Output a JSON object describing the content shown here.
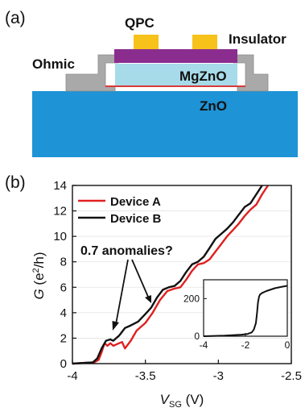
{
  "panel_a": {
    "panel_label": "(a)",
    "labels": {
      "qpc": "QPC",
      "insulator": "Insulator",
      "ohmic": "Ohmic",
      "mgzno": "MgZnO",
      "zno": "ZnO"
    },
    "colors": {
      "qpc_gate": "#f7c21a",
      "insulator": "#8a2d8e",
      "ohmic": "#a9a9a9",
      "mgzno": "#a7dbe9",
      "interface": "#d93a3a",
      "zno": "#1e93d6"
    }
  },
  "panel_b": {
    "panel_label": "(b)",
    "annotation": "0.7 anomalies?"
  },
  "chart_data": [
    {
      "type": "line",
      "xlabel": "V",
      "xlabel_sub": "SG",
      "xlabel_unit": "(V)",
      "ylabel": "G",
      "ylabel_unit": "(e",
      "ylabel_sup": "2",
      "ylabel_unit_end": "/h)",
      "xlim": [
        -4,
        -2.5
      ],
      "ylim": [
        0,
        14
      ],
      "xticks": [
        -4,
        -3.5,
        -3,
        -2.5
      ],
      "yticks": [
        0,
        2,
        4,
        6,
        8,
        10,
        12,
        14
      ],
      "legend_position": "top-left",
      "series": [
        {
          "name": "Device A",
          "color": "#e02020",
          "x": [
            -4.0,
            -3.85,
            -3.82,
            -3.8,
            -3.78,
            -3.76,
            -3.74,
            -3.72,
            -3.7,
            -3.68,
            -3.66,
            -3.64,
            -3.6,
            -3.56,
            -3.5,
            -3.45,
            -3.4,
            -3.35,
            -3.3,
            -3.26,
            -3.22,
            -3.18,
            -3.14,
            -3.1,
            -3.06,
            -3.02,
            -2.98,
            -2.94,
            -2.9,
            -2.86,
            -2.82,
            -2.78,
            -2.74,
            -2.7,
            -2.66
          ],
          "y": [
            0,
            0.1,
            0.3,
            0.9,
            1.6,
            1.4,
            1.6,
            1.4,
            1.5,
            1.6,
            1.7,
            1.2,
            1.8,
            2.6,
            3.2,
            4.0,
            5.0,
            5.7,
            5.9,
            6.0,
            6.6,
            7.3,
            7.8,
            7.9,
            8.2,
            8.8,
            9.4,
            10.0,
            10.5,
            11.0,
            11.6,
            12.1,
            12.5,
            13.3,
            14.0
          ]
        },
        {
          "name": "Device B",
          "color": "#111111",
          "x": [
            -4.0,
            -3.86,
            -3.83,
            -3.8,
            -3.77,
            -3.74,
            -3.72,
            -3.7,
            -3.68,
            -3.66,
            -3.64,
            -3.6,
            -3.55,
            -3.5,
            -3.46,
            -3.42,
            -3.38,
            -3.34,
            -3.3,
            -3.26,
            -3.22,
            -3.18,
            -3.14,
            -3.1,
            -3.06,
            -3.02,
            -2.98,
            -2.94,
            -2.9,
            -2.86,
            -2.82,
            -2.78,
            -2.74,
            -2.7
          ],
          "y": [
            0,
            0.1,
            0.4,
            1.2,
            1.8,
            1.9,
            1.8,
            2.0,
            2.2,
            2.5,
            2.8,
            3.0,
            3.3,
            3.9,
            4.4,
            5.2,
            5.8,
            6.0,
            6.1,
            6.5,
            7.2,
            7.8,
            8.0,
            8.4,
            9.1,
            9.8,
            10.2,
            10.6,
            11.1,
            11.7,
            12.3,
            12.6,
            13.3,
            14.0
          ]
        }
      ]
    },
    {
      "type": "line",
      "xlim": [
        -4,
        0
      ],
      "ylim": [
        0,
        300
      ],
      "xticks": [
        -4,
        -2,
        0
      ],
      "yticks": [
        0,
        200
      ],
      "series": [
        {
          "color": "#111111",
          "x": [
            -4.0,
            -3.0,
            -2.2,
            -1.9,
            -1.7,
            -1.6,
            -1.5,
            -1.45,
            -1.4,
            -1.35,
            -1.3,
            -1.2,
            -1.0,
            -0.6,
            -0.3,
            0.0
          ],
          "y": [
            0,
            3,
            8,
            12,
            20,
            35,
            70,
            120,
            180,
            210,
            222,
            230,
            240,
            255,
            262,
            268
          ]
        }
      ]
    }
  ]
}
